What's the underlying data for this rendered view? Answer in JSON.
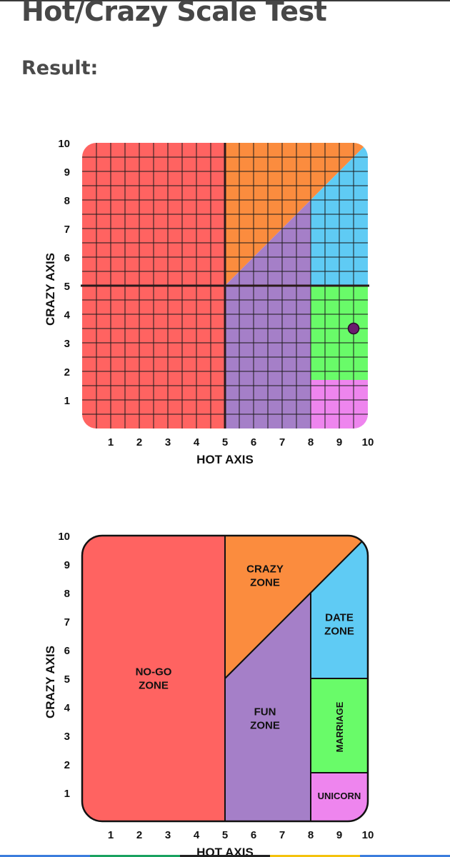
{
  "page": {
    "title": "Hot/Crazy Scale Test",
    "result_label": "Result:"
  },
  "colors": {
    "no_go": "#ff6361",
    "crazy": "#fb8c3e",
    "fun": "#a57fc8",
    "date": "#5fcbf4",
    "marriage": "#69fb69",
    "unicorn": "#ee85ee",
    "grid": "#1a1a1a",
    "marker": "#6b1b6e"
  },
  "chart_data": [
    {
      "type": "scatter",
      "xlabel": "HOT AXIS",
      "ylabel": "CRAZY AXIS",
      "xlim": [
        0,
        10
      ],
      "ylim": [
        0,
        10
      ],
      "x_ticks": [
        "1",
        "2",
        "3",
        "4",
        "5",
        "6",
        "7",
        "8",
        "9",
        "10"
      ],
      "y_ticks": [
        "1",
        "2",
        "3",
        "4",
        "5",
        "6",
        "7",
        "8",
        "9",
        "10"
      ],
      "grid": true,
      "grid_step": 0.5,
      "major_lines": {
        "x": 5,
        "y": 5
      },
      "points": [
        {
          "x": 9.5,
          "y": 3.5
        }
      ]
    },
    {
      "type": "area",
      "xlabel": "HOT AXIS",
      "ylabel": "CRAZY AXIS",
      "xlim": [
        0,
        10
      ],
      "ylim": [
        0,
        10
      ],
      "x_ticks": [
        "1",
        "2",
        "3",
        "4",
        "5",
        "6",
        "7",
        "8",
        "9",
        "10"
      ],
      "y_ticks": [
        "1",
        "2",
        "3",
        "4",
        "5",
        "6",
        "7",
        "8",
        "9",
        "10"
      ],
      "grid": false,
      "zones": [
        {
          "key": "no_go",
          "label_lines": [
            "NO-GO",
            "ZONE"
          ],
          "label_pos": [
            2.5,
            5
          ]
        },
        {
          "key": "crazy",
          "label_lines": [
            "CRAZY",
            "ZONE"
          ],
          "label_pos": [
            6.4,
            8.6
          ]
        },
        {
          "key": "fun",
          "label_lines": [
            "FUN",
            "ZONE"
          ],
          "label_pos": [
            6.4,
            3.6
          ]
        },
        {
          "key": "date",
          "label_lines": [
            "DATE",
            "ZONE"
          ],
          "label_pos": [
            9.0,
            6.9
          ]
        },
        {
          "key": "marriage",
          "label_lines": [
            "MARRIAGE"
          ],
          "label_pos": [
            9.0,
            3.3
          ],
          "rotated": true
        },
        {
          "key": "unicorn",
          "label_lines": [
            "UNICORN"
          ],
          "label_pos": [
            9.0,
            0.9
          ]
        }
      ]
    }
  ]
}
